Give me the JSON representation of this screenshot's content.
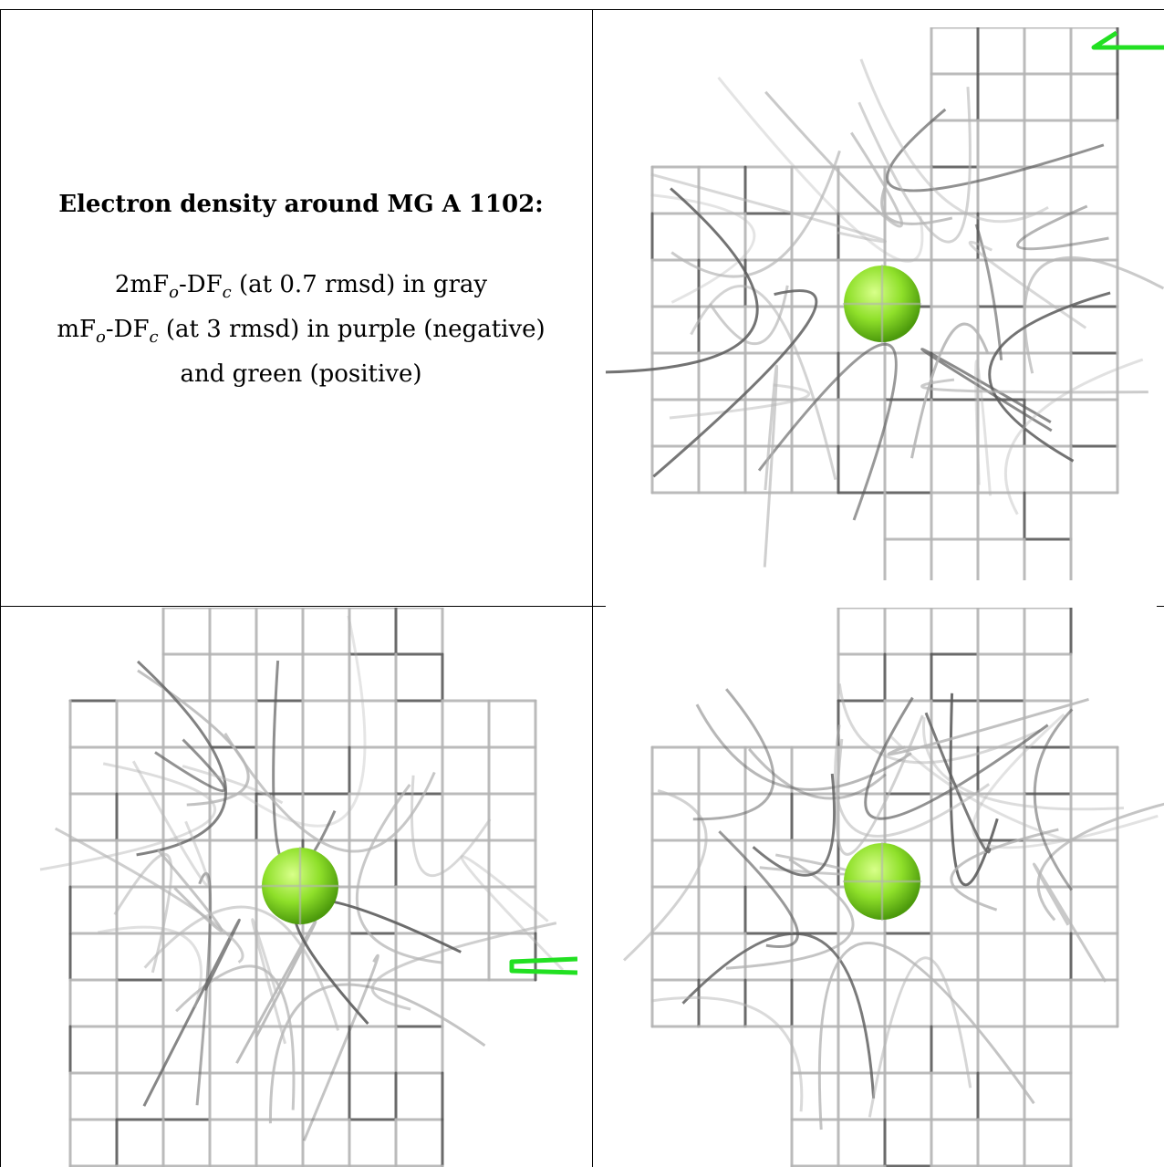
{
  "caption": {
    "title": "Electron density around MG A 1102:",
    "line1_prefix": "2mF",
    "line1_sub1": "o",
    "line1_mid": "-DF",
    "line1_sub2": "c",
    "line1_suffix": " (at 0.7 rmsd) in gray",
    "line2_prefix": "mF",
    "line2_sub1": "o",
    "line2_mid": "-DF",
    "line2_sub2": "c",
    "line2_suffix": " (at 3 rmsd) in purple (negative)",
    "line3": "and green (positive)"
  },
  "colors": {
    "mesh_gray": "#b4b4b4",
    "mesh_dark": "#5a5a5a",
    "ion_green": "#8fe02a",
    "positive_green": "#22e022",
    "frame": "#000000"
  },
  "panels": [
    {
      "name": "view-1",
      "has_positive_density": true
    },
    {
      "name": "view-2",
      "has_positive_density": true
    },
    {
      "name": "view-3",
      "has_positive_density": true
    }
  ]
}
